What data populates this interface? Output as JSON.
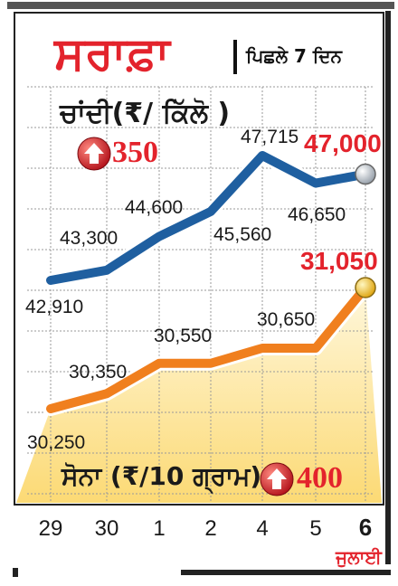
{
  "header": {
    "title": "ਸਰਾਫ਼ਾ",
    "subtitle": "ਪਿਛਲੇ 7 ਦਿਨ"
  },
  "silver": {
    "label": "ਚਾਂਦੀ(₹/ ਕਿੱਲੋ )",
    "change": "350"
  },
  "gold": {
    "label": "ਸੋਨਾ (₹/10 ਗ੍ਰਾਮ)",
    "change": "400"
  },
  "month_label": "ਜੁਲਾਈ",
  "colors": {
    "silver_line": "#1f5fa0",
    "gold_line": "#f07f1e",
    "accent_red": "#e3232c",
    "gold_fill_top": "#fde9a8"
  },
  "icons": [
    "up-arrow-icon"
  ],
  "chart_data": {
    "type": "line",
    "categories": [
      "29",
      "30",
      "1",
      "2",
      "4",
      "5",
      "6"
    ],
    "series": [
      {
        "name": "ਚਾਂਦੀ",
        "values": [
          42910,
          43300,
          44600,
          45560,
          47715,
          46650,
          47000
        ],
        "value_labels": [
          "42,910",
          "43,300",
          "44,600",
          "45,560",
          "47,715",
          "46,650",
          "47,000"
        ]
      },
      {
        "name": "ਸੋਨਾ",
        "values": [
          30250,
          30350,
          30550,
          30550,
          30650,
          30650,
          31050
        ],
        "value_labels": [
          "30,250",
          "30,350",
          "30,550",
          "",
          "30,650",
          "",
          "31,050"
        ]
      }
    ],
    "grid": true,
    "legend": "none"
  }
}
